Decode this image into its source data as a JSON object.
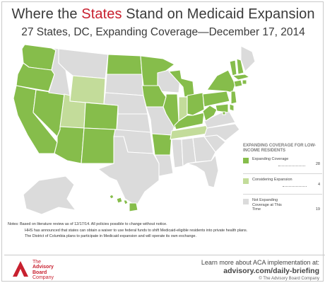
{
  "title": {
    "prefix": "Where the ",
    "highlight": "States",
    "suffix": " Stand on Medicaid Expansion"
  },
  "subtitle": "27 States, DC, Expanding Coverage—December 17, 2014",
  "colors": {
    "expanding": "#86bd4b",
    "considering": "#c3dc9a",
    "not_expanding": "#dbdbdb",
    "accent_red": "#c8202f"
  },
  "legend": {
    "title": "EXPANDING COVERAGE FOR LOW-INCOME RESIDENTS",
    "items": [
      {
        "label": "Expanding Coverage",
        "count": "28"
      },
      {
        "label": "Considering Expansion",
        "count": "4"
      },
      {
        "label": "Not Expanding Coverage at This Time",
        "count": "19"
      }
    ]
  },
  "states": {
    "WA": "expanding",
    "OR": "expanding",
    "CA": "expanding",
    "NV": "expanding",
    "ID": "not_expanding",
    "MT": "not_expanding",
    "WY": "considering",
    "UT": "considering",
    "AZ": "expanding",
    "CO": "expanding",
    "NM": "expanding",
    "ND": "expanding",
    "SD": "not_expanding",
    "NE": "not_expanding",
    "KS": "not_expanding",
    "OK": "not_expanding",
    "TX": "not_expanding",
    "MN": "expanding",
    "IA": "expanding",
    "MO": "not_expanding",
    "AR": "expanding",
    "LA": "not_expanding",
    "WI": "not_expanding",
    "IL": "expanding",
    "MI": "expanding",
    "IN": "considering",
    "OH": "expanding",
    "KY": "expanding",
    "TN": "considering",
    "MS": "not_expanding",
    "AL": "not_expanding",
    "GA": "not_expanding",
    "FL": "not_expanding",
    "SC": "not_expanding",
    "NC": "not_expanding",
    "VA": "not_expanding",
    "WV": "expanding",
    "PA": "expanding",
    "NY": "expanding",
    "VT": "expanding",
    "NH": "expanding",
    "ME": "not_expanding",
    "MA": "expanding",
    "CT": "expanding",
    "RI": "expanding",
    "NJ": "expanding",
    "DE": "expanding",
    "MD": "expanding",
    "DC": "expanding",
    "AK": "not_expanding",
    "HI": "expanding"
  },
  "notes": [
    "Notes: Based on literature review as of 12/17/14. All policies possible to change without notice.",
    "HHS has announced that states can obtain a waiver to use federal funds to shift Medicaid-eligible residents into private health plans.",
    "The District of Columbia plans to participate in Medicaid expansion and will operate its own exchange."
  ],
  "footer": {
    "logo_text": [
      "The",
      "Advisory",
      "Board",
      "Company"
    ],
    "line1": "Learn more about ACA implementation at:",
    "line2": "advisory.com/daily-briefing",
    "line3": "© The Advisory Board Company"
  }
}
